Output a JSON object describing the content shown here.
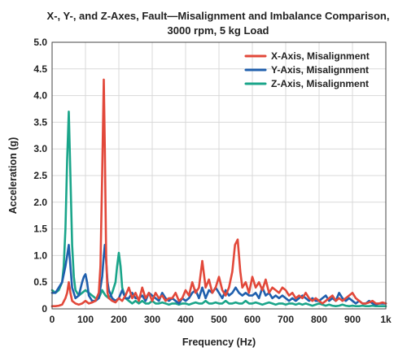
{
  "chart_data": {
    "type": "line",
    "title_lines": [
      "X-, Y-, and Z-Axes, Fault—Misalignment and Imbalance Comparison,",
      "3000 rpm, 5 kg Load"
    ],
    "xlabel": "Frequency (Hz)",
    "ylabel": "Acceleration (g)",
    "xlim": [
      0,
      1000
    ],
    "ylim": [
      0,
      5.0
    ],
    "x_ticks": [
      0,
      100,
      200,
      300,
      400,
      500,
      600,
      700,
      800,
      900,
      1000
    ],
    "x_tick_labels": [
      "0",
      "100",
      "200",
      "300",
      "400",
      "500",
      "600",
      "700",
      "800",
      "900",
      "1k"
    ],
    "y_ticks": [
      0,
      0.5,
      1.0,
      1.5,
      2.0,
      2.5,
      3.0,
      3.5,
      4.0,
      4.5,
      5.0
    ],
    "y_tick_labels": [
      "0",
      "0.5",
      "1.0",
      "1.5",
      "2.0",
      "2.5",
      "3.0",
      "3.5",
      "4.0",
      "4.5",
      "5.0"
    ],
    "grid": true,
    "legend_position": "top-right",
    "series": [
      {
        "name": "X-Axis, Misalignment",
        "color": "#e2483a",
        "x": [
          0,
          10,
          20,
          30,
          40,
          45,
          50,
          55,
          60,
          70,
          80,
          90,
          100,
          110,
          120,
          130,
          140,
          145,
          150,
          155,
          158,
          162,
          166,
          170,
          180,
          190,
          200,
          210,
          220,
          230,
          240,
          250,
          260,
          270,
          280,
          290,
          300,
          310,
          320,
          330,
          340,
          350,
          360,
          370,
          380,
          390,
          400,
          410,
          420,
          430,
          440,
          450,
          460,
          470,
          480,
          490,
          500,
          510,
          520,
          530,
          540,
          548,
          556,
          564,
          570,
          580,
          590,
          600,
          610,
          620,
          630,
          640,
          650,
          660,
          670,
          680,
          690,
          700,
          710,
          720,
          730,
          740,
          750,
          760,
          770,
          780,
          790,
          800,
          810,
          820,
          830,
          840,
          850,
          860,
          870,
          880,
          890,
          900,
          910,
          920,
          930,
          940,
          950,
          960,
          970,
          980,
          990,
          1000
        ],
        "y": [
          0.05,
          0.05,
          0.06,
          0.08,
          0.2,
          0.3,
          0.5,
          0.3,
          0.15,
          0.1,
          0.08,
          0.1,
          0.15,
          0.1,
          0.12,
          0.15,
          0.3,
          0.8,
          2.5,
          4.3,
          3.0,
          1.0,
          0.3,
          0.2,
          0.15,
          0.12,
          0.2,
          0.15,
          0.25,
          0.4,
          0.2,
          0.3,
          0.15,
          0.4,
          0.2,
          0.3,
          0.15,
          0.3,
          0.2,
          0.25,
          0.15,
          0.2,
          0.2,
          0.3,
          0.15,
          0.2,
          0.35,
          0.25,
          0.5,
          0.3,
          0.4,
          0.9,
          0.4,
          0.55,
          0.3,
          0.4,
          0.6,
          0.35,
          0.25,
          0.4,
          0.7,
          1.2,
          1.3,
          0.7,
          0.4,
          0.5,
          0.3,
          0.6,
          0.4,
          0.5,
          0.35,
          0.55,
          0.3,
          0.4,
          0.35,
          0.3,
          0.4,
          0.35,
          0.25,
          0.3,
          0.2,
          0.25,
          0.2,
          0.3,
          0.2,
          0.15,
          0.2,
          0.15,
          0.1,
          0.15,
          0.2,
          0.25,
          0.15,
          0.2,
          0.15,
          0.2,
          0.25,
          0.3,
          0.2,
          0.15,
          0.1,
          0.1,
          0.12,
          0.15,
          0.1,
          0.1,
          0.12,
          0.1
        ]
      },
      {
        "name": "Y-Axis, Misalignment",
        "color": "#1f5fad",
        "x": [
          0,
          10,
          20,
          30,
          40,
          45,
          50,
          55,
          60,
          70,
          80,
          90,
          95,
          100,
          105,
          110,
          120,
          130,
          140,
          150,
          155,
          158,
          162,
          166,
          170,
          180,
          190,
          200,
          210,
          220,
          230,
          240,
          250,
          260,
          270,
          280,
          290,
          300,
          310,
          320,
          330,
          340,
          350,
          360,
          370,
          380,
          390,
          400,
          410,
          420,
          430,
          440,
          450,
          460,
          470,
          480,
          490,
          500,
          510,
          520,
          530,
          540,
          550,
          560,
          570,
          580,
          590,
          600,
          610,
          620,
          630,
          640,
          650,
          660,
          670,
          680,
          690,
          700,
          710,
          720,
          730,
          740,
          750,
          760,
          770,
          780,
          790,
          800,
          810,
          820,
          830,
          840,
          850,
          860,
          870,
          880,
          890,
          900,
          910,
          920,
          930,
          940,
          950,
          960,
          970,
          980,
          990,
          1000
        ],
        "y": [
          0.3,
          0.3,
          0.4,
          0.5,
          0.8,
          1.0,
          1.2,
          0.8,
          0.4,
          0.2,
          0.25,
          0.5,
          0.6,
          0.65,
          0.5,
          0.25,
          0.15,
          0.15,
          0.2,
          0.6,
          1.0,
          1.2,
          0.9,
          0.5,
          0.35,
          0.2,
          0.15,
          0.2,
          0.35,
          0.2,
          0.2,
          0.3,
          0.2,
          0.2,
          0.25,
          0.15,
          0.3,
          0.25,
          0.2,
          0.15,
          0.3,
          0.2,
          0.15,
          0.2,
          0.15,
          0.1,
          0.2,
          0.15,
          0.2,
          0.3,
          0.35,
          0.2,
          0.4,
          0.2,
          0.35,
          0.3,
          0.4,
          0.3,
          0.2,
          0.35,
          0.25,
          0.3,
          0.4,
          0.3,
          0.25,
          0.3,
          0.25,
          0.25,
          0.3,
          0.2,
          0.4,
          0.25,
          0.3,
          0.2,
          0.25,
          0.2,
          0.25,
          0.2,
          0.15,
          0.2,
          0.15,
          0.2,
          0.25,
          0.2,
          0.15,
          0.2,
          0.15,
          0.15,
          0.2,
          0.25,
          0.15,
          0.2,
          0.15,
          0.3,
          0.2,
          0.15,
          0.2,
          0.15,
          0.1,
          0.15,
          0.1,
          0.1,
          0.15,
          0.1,
          0.08,
          0.1,
          0.1,
          0.1
        ]
      },
      {
        "name": "Z-Axis, Misalignment",
        "color": "#1aa58a",
        "x": [
          0,
          10,
          20,
          30,
          35,
          40,
          45,
          50,
          55,
          60,
          65,
          70,
          80,
          90,
          100,
          110,
          120,
          130,
          140,
          150,
          160,
          170,
          180,
          190,
          195,
          200,
          205,
          210,
          220,
          230,
          240,
          250,
          260,
          270,
          280,
          290,
          300,
          310,
          320,
          330,
          340,
          350,
          360,
          370,
          380,
          390,
          400,
          410,
          420,
          430,
          440,
          450,
          460,
          470,
          480,
          490,
          500,
          510,
          520,
          530,
          540,
          550,
          560,
          570,
          580,
          590,
          600,
          610,
          620,
          630,
          640,
          650,
          660,
          670,
          680,
          690,
          700,
          710,
          720,
          730,
          740,
          750,
          760,
          770,
          780,
          790,
          800,
          810,
          820,
          830,
          840,
          850,
          860,
          870,
          880,
          890,
          900,
          910,
          920,
          930,
          940,
          950,
          960,
          970,
          980,
          990,
          1000
        ],
        "y": [
          0.35,
          0.3,
          0.35,
          0.5,
          0.8,
          1.5,
          2.8,
          3.7,
          2.5,
          1.2,
          0.6,
          0.35,
          0.25,
          0.3,
          0.35,
          0.3,
          0.25,
          0.2,
          0.2,
          0.35,
          0.25,
          0.2,
          0.3,
          0.5,
          0.8,
          1.05,
          0.8,
          0.4,
          0.2,
          0.15,
          0.1,
          0.15,
          0.1,
          0.15,
          0.1,
          0.1,
          0.15,
          0.1,
          0.1,
          0.12,
          0.1,
          0.08,
          0.1,
          0.1,
          0.08,
          0.1,
          0.1,
          0.08,
          0.1,
          0.12,
          0.1,
          0.1,
          0.15,
          0.1,
          0.1,
          0.12,
          0.1,
          0.1,
          0.15,
          0.1,
          0.1,
          0.12,
          0.1,
          0.1,
          0.15,
          0.1,
          0.1,
          0.12,
          0.1,
          0.08,
          0.1,
          0.12,
          0.1,
          0.08,
          0.1,
          0.1,
          0.08,
          0.1,
          0.1,
          0.08,
          0.1,
          0.08,
          0.1,
          0.08,
          0.06,
          0.08,
          0.1,
          0.08,
          0.06,
          0.08,
          0.06,
          0.05,
          0.06,
          0.08,
          0.06,
          0.05,
          0.06,
          0.05,
          0.05,
          0.06,
          0.05,
          0.05,
          0.06,
          0.05,
          0.05,
          0.05,
          0.05
        ]
      }
    ]
  }
}
